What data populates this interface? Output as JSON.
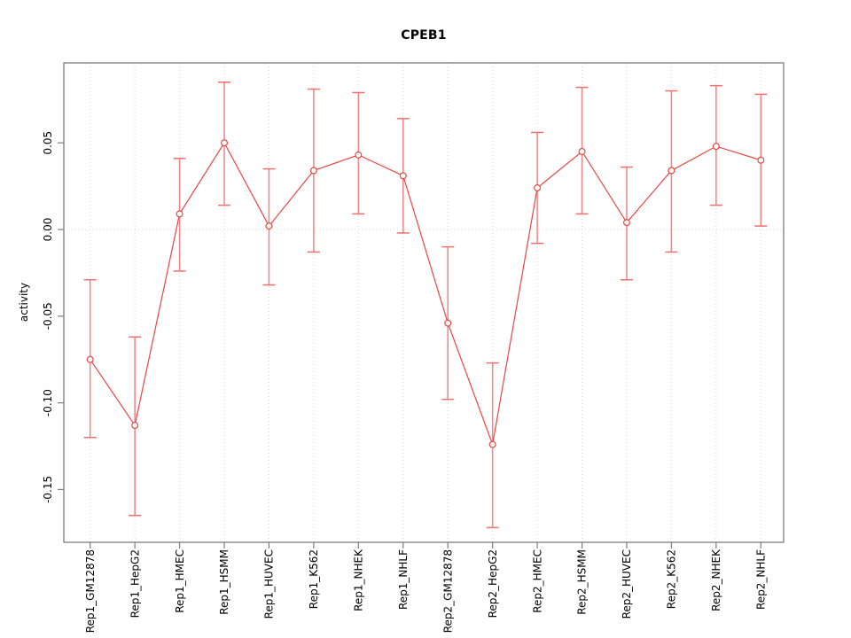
{
  "chart_data": {
    "type": "line",
    "title": "CPEB1",
    "ylabel": "activity",
    "xlabel": "",
    "categories": [
      "Rep1_GM12878",
      "Rep1_HepG2",
      "Rep1_HMEC",
      "Rep1_HSMM",
      "Rep1_HUVEC",
      "Rep1_K562",
      "Rep1_NHEK",
      "Rep1_NHLF",
      "Rep2_GM12878",
      "Rep2_HepG2",
      "Rep2_HMEC",
      "Rep2_HSMM",
      "Rep2_HUVEC",
      "Rep2_K562",
      "Rep2_NHEK",
      "Rep2_NHLF"
    ],
    "series": [
      {
        "name": "activity",
        "values": [
          -0.075,
          -0.113,
          0.009,
          0.05,
          0.002,
          0.034,
          0.043,
          0.031,
          -0.054,
          -0.124,
          0.024,
          0.045,
          0.004,
          0.034,
          0.048,
          0.04
        ],
        "error_low": [
          -0.12,
          -0.165,
          -0.024,
          0.014,
          -0.032,
          -0.013,
          0.009,
          -0.002,
          -0.098,
          -0.172,
          -0.008,
          0.009,
          -0.029,
          -0.013,
          0.014,
          0.002
        ],
        "error_high": [
          -0.029,
          -0.062,
          0.041,
          0.085,
          0.035,
          0.081,
          0.079,
          0.064,
          -0.01,
          -0.077,
          0.056,
          0.082,
          0.036,
          0.08,
          0.083,
          0.078
        ]
      }
    ],
    "yticks": [
      0.05,
      0.0,
      -0.05,
      -0.1,
      -0.15
    ],
    "ytick_labels": [
      "0.05",
      "0.00",
      "-0.05",
      "-0.10",
      "-0.15"
    ],
    "ylim": [
      -0.178,
      0.098
    ],
    "marker": "open-circle",
    "legend": "none",
    "grid": "dotted vertical line at each category; dotted horizontal line at y=0",
    "colors": {
      "line": "#e84545",
      "marker": "#e84545",
      "error_bar": "#ee7070",
      "grid": "#d9d9d9",
      "frame": "#7d7d7d",
      "text": "#000000",
      "background": "#ffffff"
    }
  }
}
